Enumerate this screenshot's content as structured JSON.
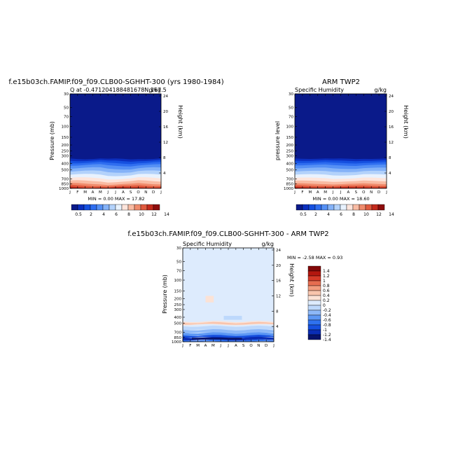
{
  "chart_data": [
    {
      "type": "heatmap",
      "title": "f.e15b03ch.FAMIP.f09_f09.CLB00-SGHHT-300 (yrs 1980-1984)",
      "left_label": "Q at -0.471204188481678N,167.5",
      "right_label": "g/kg",
      "ylabel": "Pressure (mb)",
      "ylabel_right": "Height (km)",
      "x_ticks": [
        "J",
        "F",
        "M",
        "A",
        "M",
        "J",
        "J",
        "A",
        "S",
        "O",
        "N",
        "D",
        "J"
      ],
      "y_ticks": [
        "30",
        "50",
        "70",
        "100",
        "150",
        "200",
        "250",
        "300",
        "400",
        "500",
        "700",
        "850",
        "1000"
      ],
      "height_ticks": [
        "24",
        "20",
        "16",
        "12",
        "8",
        "4"
      ],
      "stats": "MIN =    0.00 MAX =   17.82",
      "colorbar_labels": [
        "0.5",
        "2",
        "4",
        "6",
        "8",
        "10",
        "12",
        "14"
      ]
    },
    {
      "type": "heatmap",
      "title": "ARM TWP2",
      "left_label": "Specific Humidity",
      "right_label": "g/kg",
      "ylabel": "pressure level",
      "ylabel_right": "Height (km)",
      "x_ticks": [
        "J",
        "F",
        "M",
        "A",
        "M",
        "J",
        "J",
        "A",
        "S",
        "O",
        "N",
        "D",
        "J"
      ],
      "y_ticks": [
        "30",
        "50",
        "70",
        "100",
        "150",
        "200",
        "250",
        "300",
        "400",
        "500",
        "700",
        "850",
        "1000"
      ],
      "height_ticks": [
        "24",
        "20",
        "16",
        "12",
        "8",
        "4"
      ],
      "stats": "MIN =    0.00 MAX =   18.60",
      "colorbar_labels": [
        "0.5",
        "2",
        "4",
        "6",
        "8",
        "10",
        "12",
        "14"
      ]
    },
    {
      "type": "heatmap",
      "title": "f.e15b03ch.FAMIP.f09_f09.CLB00-SGHHT-300 - ARM TWP2",
      "left_label": "Specific Humidity",
      "right_label": "g/kg",
      "ylabel": "Pressure (mb)",
      "ylabel_right": "Height (km)",
      "x_ticks": [
        "J",
        "F",
        "M",
        "A",
        "M",
        "J",
        "J",
        "A",
        "S",
        "O",
        "N",
        "D",
        "J"
      ],
      "y_ticks": [
        "30",
        "50",
        "70",
        "100",
        "150",
        "200",
        "250",
        "300",
        "400",
        "500",
        "700",
        "850",
        "1000"
      ],
      "height_ticks": [
        "24",
        "20",
        "16",
        "12",
        "8",
        "4"
      ],
      "stats": "MIN =   -2.58 MAX =    0.93",
      "colorbar_labels": [
        "1.4",
        "1.2",
        "1",
        "0.8",
        "0.6",
        "0.4",
        "0.2",
        "0",
        "-0.2",
        "-0.4",
        "-0.6",
        "-0.8",
        "-1",
        "-1.2",
        "-1.4"
      ]
    }
  ],
  "colors": {
    "seq": [
      "#0a1a8a",
      "#0b2fbf",
      "#1550e0",
      "#2f6ef0",
      "#5590f5",
      "#84b2f8",
      "#b3d2fb",
      "#e8f2fe",
      "#fde5dc",
      "#f9bba3",
      "#f08b6c",
      "#e05a3e",
      "#c42a1c",
      "#8e0c0c"
    ],
    "div": [
      "#07136d",
      "#0a2db5",
      "#1650df",
      "#2f72ef",
      "#5c97f4",
      "#8db8f8",
      "#bdd8fc",
      "#ddebfd",
      "#fbe2d6",
      "#f8c4ad",
      "#f29c7e",
      "#e76d50",
      "#d53a28",
      "#b3170f",
      "#820808"
    ]
  }
}
